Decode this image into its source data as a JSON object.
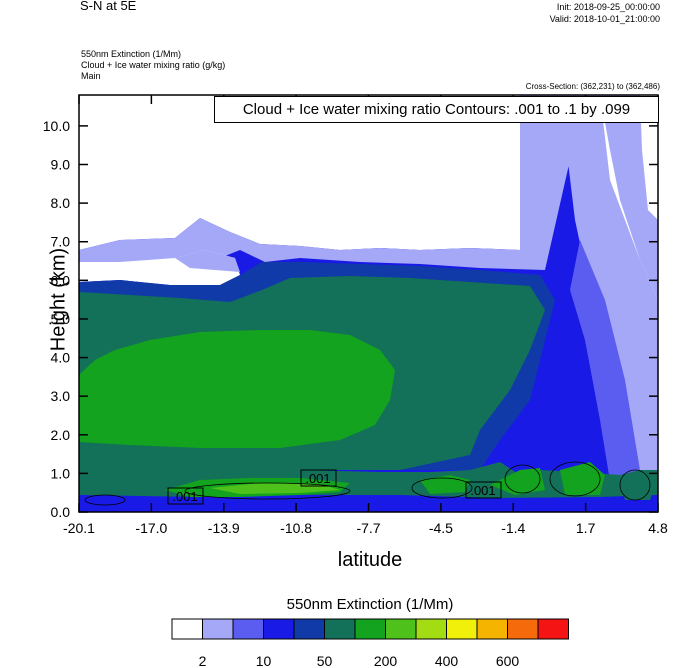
{
  "header": {
    "title": "S-N at 5E",
    "init": "Init: 2018-09-25_00:00:00",
    "valid": "Valid: 2018-10-01_21:00:00",
    "fields": [
      "550nm Extinction   (1/Mm)",
      "Cloud + Ice water mixing ratio   (g/kg)",
      "Main"
    ],
    "cross_section": "Cross-Section: (362,231) to (362,486)"
  },
  "contour_note": "Cloud + Ice water mixing ratio Contours: .001 to .1 by .099",
  "chart_data": {
    "type": "heatmap",
    "xlabel": "latitude",
    "ylabel": "Height (km)",
    "xlim": [
      -20.1,
      4.8
    ],
    "ylim": [
      0.0,
      10.8
    ],
    "x_ticks": [
      "-20.1",
      "-17.0",
      "-13.9",
      "-10.8",
      "-7.7",
      "-4.5",
      "-1.4",
      "1.7",
      "4.8"
    ],
    "y_ticks": [
      "0.0",
      "1.0",
      "2.0",
      "3.0",
      "4.0",
      "5.0",
      "6.0",
      "7.0",
      "8.0",
      "9.0",
      "10.0"
    ],
    "contour_labels": [
      ".001",
      ".001",
      ".001"
    ],
    "colorbar": {
      "title": "550nm Extinction  (1/Mm)",
      "colors": [
        "#ffffff",
        "#a4a8f7",
        "#5b5df0",
        "#1a1ae6",
        "#0f3aa8",
        "#127158",
        "#14a31e",
        "#4ec21a",
        "#a4dc14",
        "#f0f00a",
        "#f5b400",
        "#f56a0a",
        "#f51414"
      ],
      "labels": [
        "2",
        "10",
        "50",
        "200",
        "400",
        "600"
      ]
    }
  }
}
